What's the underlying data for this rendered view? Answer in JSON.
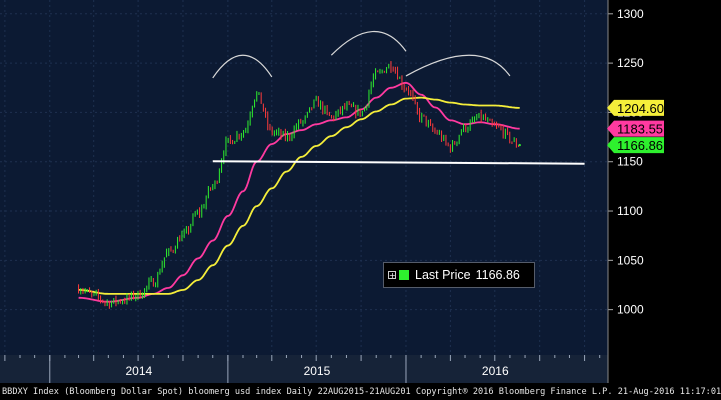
{
  "chart_data": {
    "type": "line",
    "title": "",
    "xlabel": "",
    "ylabel": "",
    "ylim": [
      960,
      1300
    ],
    "y_ticks": [
      "1000",
      "1050",
      "1100",
      "1150",
      "1200",
      "1250",
      "1300"
    ],
    "x_year_labels": [
      "2014",
      "2015",
      "2016"
    ],
    "grid": true,
    "background_color": "#000000",
    "plot_color": "#0c1a33",
    "grid_color": "#1e3050",
    "series": [
      {
        "name": "Last Price",
        "color": "#2ef02e",
        "style": "candlestick",
        "points": [
          [
            "2014-03-01",
            1022
          ],
          [
            "2014-04-01",
            1014
          ],
          [
            "2014-05-01",
            1007
          ],
          [
            "2014-06-01",
            1010
          ],
          [
            "2014-07-01",
            1015
          ],
          [
            "2014-08-01",
            1028
          ],
          [
            "2014-09-01",
            1058
          ],
          [
            "2014-10-01",
            1075
          ],
          [
            "2014-11-01",
            1098
          ],
          [
            "2014-12-01",
            1125
          ],
          [
            "2015-01-01",
            1170
          ],
          [
            "2015-02-01",
            1180
          ],
          [
            "2015-03-01",
            1218
          ],
          [
            "2015-04-01",
            1180
          ],
          [
            "2015-05-01",
            1175
          ],
          [
            "2015-06-01",
            1190
          ],
          [
            "2015-07-01",
            1210
          ],
          [
            "2015-08-01",
            1195
          ],
          [
            "2015-09-01",
            1205
          ],
          [
            "2015-10-01",
            1200
          ],
          [
            "2015-11-01",
            1238
          ],
          [
            "2015-12-01",
            1248
          ],
          [
            "2016-01-01",
            1225
          ],
          [
            "2016-02-01",
            1195
          ],
          [
            "2016-03-01",
            1180
          ],
          [
            "2016-04-01",
            1165
          ],
          [
            "2016-05-01",
            1185
          ],
          [
            "2016-06-01",
            1195
          ],
          [
            "2016-07-01",
            1185
          ],
          [
            "2016-08-21",
            1166.86
          ]
        ]
      },
      {
        "name": "",
        "color": "#ff3aa0",
        "points": [
          [
            "2014-03-01",
            1012
          ],
          [
            "2014-05-01",
            1008
          ],
          [
            "2014-07-01",
            1012
          ],
          [
            "2014-08-01",
            1016
          ],
          [
            "2014-09-01",
            1022
          ],
          [
            "2014-10-01",
            1035
          ],
          [
            "2014-11-01",
            1052
          ],
          [
            "2014-12-01",
            1070
          ],
          [
            "2015-01-01",
            1095
          ],
          [
            "2015-02-01",
            1120
          ],
          [
            "2015-03-01",
            1150
          ],
          [
            "2015-04-01",
            1168
          ],
          [
            "2015-05-01",
            1178
          ],
          [
            "2015-06-01",
            1182
          ],
          [
            "2015-07-01",
            1188
          ],
          [
            "2015-08-01",
            1192
          ],
          [
            "2015-09-01",
            1195
          ],
          [
            "2015-10-01",
            1203
          ],
          [
            "2015-11-01",
            1215
          ],
          [
            "2015-12-01",
            1225
          ],
          [
            "2016-01-01",
            1230
          ],
          [
            "2016-02-01",
            1218
          ],
          [
            "2016-03-01",
            1205
          ],
          [
            "2016-04-01",
            1192
          ],
          [
            "2016-05-01",
            1188
          ],
          [
            "2016-06-01",
            1190
          ],
          [
            "2016-07-01",
            1188
          ],
          [
            "2016-08-21",
            1183.55
          ]
        ]
      },
      {
        "name": "",
        "color": "#f5ee3a",
        "points": [
          [
            "2014-03-01",
            1020
          ],
          [
            "2014-05-01",
            1016
          ],
          [
            "2014-07-01",
            1016
          ],
          [
            "2014-08-01",
            1016
          ],
          [
            "2014-09-01",
            1016
          ],
          [
            "2014-10-01",
            1020
          ],
          [
            "2014-11-01",
            1030
          ],
          [
            "2014-12-01",
            1045
          ],
          [
            "2015-01-01",
            1065
          ],
          [
            "2015-02-01",
            1085
          ],
          [
            "2015-03-01",
            1105
          ],
          [
            "2015-04-01",
            1123
          ],
          [
            "2015-05-01",
            1140
          ],
          [
            "2015-06-01",
            1155
          ],
          [
            "2015-07-01",
            1166
          ],
          [
            "2015-08-01",
            1176
          ],
          [
            "2015-09-01",
            1185
          ],
          [
            "2015-10-01",
            1193
          ],
          [
            "2015-11-01",
            1201
          ],
          [
            "2015-12-01",
            1208
          ],
          [
            "2016-01-01",
            1214
          ],
          [
            "2016-02-01",
            1215
          ],
          [
            "2016-03-01",
            1213
          ],
          [
            "2016-04-01",
            1210
          ],
          [
            "2016-05-01",
            1208
          ],
          [
            "2016-06-01",
            1207
          ],
          [
            "2016-07-01",
            1207
          ],
          [
            "2016-08-21",
            1204.6
          ]
        ]
      }
    ],
    "annotations": {
      "neckline": {
        "from": [
          "2014-12-01",
          1150.5
        ],
        "to": [
          "2017-01-01",
          1148
        ],
        "color": "#ffffff"
      },
      "arcs": [
        {
          "from": [
            "2014-12-01",
            1235
          ],
          "peak": [
            "2015-02-01",
            1258
          ],
          "to": [
            "2015-04-01",
            1236
          ],
          "color": "#d8d8d8"
        },
        {
          "from": [
            "2015-08-01",
            1258
          ],
          "peak": [
            "2015-11-01",
            1282
          ],
          "to": [
            "2016-01-01",
            1262
          ],
          "color": "#d8d8d8"
        },
        {
          "from": [
            "2016-01-01",
            1237
          ],
          "peak": [
            "2016-06-01",
            1258
          ],
          "to": [
            "2016-08-01",
            1237
          ],
          "color": "#d8d8d8"
        }
      ]
    },
    "last_value_labels": [
      {
        "text": "1204.60",
        "value": 1204.6,
        "bg": "#f5ee3a",
        "fg": "#000000"
      },
      {
        "text": "1183.55",
        "value": 1183.55,
        "bg": "#ff3aa0",
        "fg": "#000000"
      },
      {
        "text": "1166.86",
        "value": 1166.86,
        "bg": "#2ef02e",
        "fg": "#000000"
      }
    ]
  },
  "legend": {
    "plus_glyph": "+",
    "swatch_color": "#2ef02e",
    "label": "Last Price",
    "value": "1166.86"
  },
  "footer_text": "BBDXY Index (Bloomberg Dollar Spot) bloomerg usd index  Daily 22AUG2015-21AUG201 Copyright® 2016 Bloomberg Finance L.P.  21-Aug-2016 11:17:01"
}
